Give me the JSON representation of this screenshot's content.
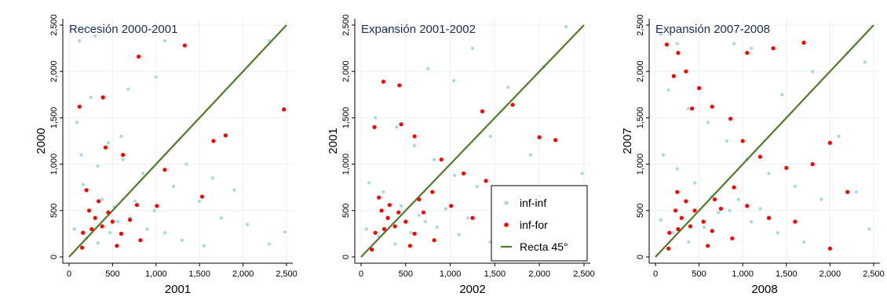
{
  "colors": {
    "inf_inf": "#add8e6",
    "inf_for": "#ff0000",
    "line45": "#4f7a28",
    "grid": "#eaf2f3",
    "axis": "#000000",
    "title": "#1a2e5a"
  },
  "legend": {
    "inf_inf": "inf-inf",
    "inf_for": "inf-for",
    "line45": "Recta 45°"
  },
  "chart_data": [
    {
      "type": "scatter",
      "title": "Recesión 2000-2001",
      "xlabel": "2001",
      "ylabel": "2000",
      "xlim": [
        0,
        2500
      ],
      "ylim": [
        0,
        2500
      ],
      "xticks": [
        "0",
        "500",
        "1,000",
        "1,500",
        "2,000",
        "2,500"
      ],
      "yticks": [
        "0",
        "500",
        "1,000",
        "1,500",
        "2,000",
        "2,500"
      ],
      "grid": true,
      "series": [
        {
          "name": "inf-inf",
          "points": [
            [
              120,
              2330
            ],
            [
              300,
              2380
            ],
            [
              1100,
              2330
            ],
            [
              680,
              1810
            ],
            [
              1000,
              1940
            ],
            [
              2300,
              2330
            ],
            [
              2470,
              1600
            ],
            [
              250,
              1720
            ],
            [
              90,
              1450
            ],
            [
              450,
              1230
            ],
            [
              620,
              1050
            ],
            [
              850,
              900
            ],
            [
              1200,
              760
            ],
            [
              1500,
              600
            ],
            [
              1750,
              420
            ],
            [
              2050,
              350
            ],
            [
              2300,
              140
            ],
            [
              2480,
              270
            ],
            [
              160,
              780
            ],
            [
              380,
              620
            ],
            [
              520,
              540
            ],
            [
              700,
              420
            ],
            [
              900,
              300
            ],
            [
              1100,
              260
            ],
            [
              1300,
              180
            ],
            [
              1550,
              120
            ],
            [
              60,
              300
            ],
            [
              200,
              200
            ],
            [
              330,
              150
            ],
            [
              470,
              260
            ],
            [
              560,
              380
            ],
            [
              760,
              600
            ],
            [
              980,
              500
            ],
            [
              140,
              1100
            ],
            [
              330,
              980
            ],
            [
              600,
              1300
            ],
            [
              1350,
              1000
            ],
            [
              1650,
              850
            ],
            [
              1900,
              720
            ]
          ]
        },
        {
          "name": "inf-for",
          "points": [
            [
              1330,
              2280
            ],
            [
              800,
              2160
            ],
            [
              390,
              1720
            ],
            [
              120,
              1620
            ],
            [
              1800,
              1310
            ],
            [
              2470,
              1590
            ],
            [
              1660,
              1250
            ],
            [
              420,
              1180
            ],
            [
              620,
              1100
            ],
            [
              1100,
              940
            ],
            [
              200,
              720
            ],
            [
              340,
              600
            ],
            [
              450,
              480
            ],
            [
              300,
              420
            ],
            [
              500,
              380
            ],
            [
              260,
              300
            ],
            [
              600,
              250
            ],
            [
              780,
              560
            ],
            [
              820,
              180
            ],
            [
              160,
              260
            ],
            [
              380,
              330
            ],
            [
              700,
              400
            ],
            [
              1010,
              550
            ],
            [
              1530,
              650
            ],
            [
              150,
              100
            ],
            [
              230,
              500
            ],
            [
              550,
              120
            ]
          ]
        }
      ]
    },
    {
      "type": "scatter",
      "title": "Expansión 2001-2002",
      "xlabel": "2002",
      "ylabel": "2001",
      "xlim": [
        0,
        2500
      ],
      "ylim": [
        0,
        2500
      ],
      "xticks": [
        "0",
        "500",
        "1,000",
        "1,500",
        "2,000",
        "2,500"
      ],
      "yticks": [
        "0",
        "500",
        "1,000",
        "1,500",
        "2,000",
        "2,500"
      ],
      "grid": true,
      "series": [
        {
          "name": "inf-inf",
          "points": [
            [
              300,
              2450
            ],
            [
              1250,
              2250
            ],
            [
              750,
              2030
            ],
            [
              1040,
              1900
            ],
            [
              1650,
              1830
            ],
            [
              2050,
              2050
            ],
            [
              2300,
              2480
            ],
            [
              1450,
              1300
            ],
            [
              1900,
              1100
            ],
            [
              2200,
              700
            ],
            [
              2400,
              350
            ],
            [
              2480,
              900
            ],
            [
              160,
              1500
            ],
            [
              400,
              1400
            ],
            [
              600,
              1200
            ],
            [
              820,
              1050
            ],
            [
              1050,
              880
            ],
            [
              1300,
              760
            ],
            [
              1600,
              620
            ],
            [
              90,
              800
            ],
            [
              250,
              700
            ],
            [
              450,
              550
            ],
            [
              650,
              450
            ],
            [
              850,
              320
            ],
            [
              1100,
              240
            ],
            [
              1450,
              160
            ],
            [
              60,
              300
            ],
            [
              200,
              220
            ],
            [
              380,
              140
            ],
            [
              560,
              260
            ],
            [
              720,
              380
            ],
            [
              950,
              520
            ],
            [
              1200,
              420
            ],
            [
              1800,
              280
            ],
            [
              2100,
              160
            ]
          ]
        },
        {
          "name": "inf-for",
          "points": [
            [
              250,
              1890
            ],
            [
              430,
              1850
            ],
            [
              1360,
              1570
            ],
            [
              1700,
              1640
            ],
            [
              2000,
              1290
            ],
            [
              2180,
              1260
            ],
            [
              450,
              1430
            ],
            [
              600,
              1300
            ],
            [
              150,
              1400
            ],
            [
              900,
              1050
            ],
            [
              1150,
              900
            ],
            [
              1400,
              820
            ],
            [
              200,
              640
            ],
            [
              320,
              560
            ],
            [
              420,
              480
            ],
            [
              300,
              420
            ],
            [
              500,
              380
            ],
            [
              260,
              300
            ],
            [
              600,
              250
            ],
            [
              700,
              480
            ],
            [
              820,
              180
            ],
            [
              160,
              260
            ],
            [
              380,
              330
            ],
            [
              650,
              620
            ],
            [
              1010,
              550
            ],
            [
              1250,
              420
            ],
            [
              120,
              80
            ],
            [
              230,
              500
            ],
            [
              550,
              120
            ],
            [
              800,
              700
            ]
          ]
        }
      ]
    },
    {
      "type": "scatter",
      "title": "Expansión 2007-2008",
      "xlabel": "2008",
      "ylabel": "2007",
      "xlim": [
        0,
        2500
      ],
      "ylim": [
        0,
        2500
      ],
      "xticks": [
        "0",
        "500",
        "1,000",
        "1,500",
        "2,000",
        "2,500"
      ],
      "yticks": [
        "0",
        "500",
        "1,000",
        "1,500",
        "2,000",
        "2,500"
      ],
      "grid": true,
      "series": [
        {
          "name": "inf-inf",
          "points": [
            [
              60,
              2400
            ],
            [
              250,
              2300
            ],
            [
              900,
              2300
            ],
            [
              1100,
              2250
            ],
            [
              2200,
              2200
            ],
            [
              2400,
              2100
            ],
            [
              1800,
              2000
            ],
            [
              1450,
              1750
            ],
            [
              2100,
              1300
            ],
            [
              2300,
              700
            ],
            [
              2450,
              300
            ],
            [
              150,
              1800
            ],
            [
              380,
              1600
            ],
            [
              600,
              1450
            ],
            [
              820,
              1250
            ],
            [
              1050,
              1050
            ],
            [
              1300,
              900
            ],
            [
              1600,
              760
            ],
            [
              1900,
              620
            ],
            [
              90,
              1100
            ],
            [
              250,
              950
            ],
            [
              450,
              800
            ],
            [
              650,
              650
            ],
            [
              850,
              500
            ],
            [
              1100,
              380
            ],
            [
              1400,
              260
            ],
            [
              1700,
              160
            ],
            [
              2000,
              90
            ],
            [
              60,
              400
            ],
            [
              200,
              260
            ],
            [
              380,
              160
            ],
            [
              560,
              320
            ],
            [
              720,
              480
            ],
            [
              950,
              620
            ],
            [
              1200,
              520
            ]
          ]
        },
        {
          "name": "inf-for",
          "points": [
            [
              130,
              2290
            ],
            [
              260,
              2200
            ],
            [
              350,
              2000
            ],
            [
              1050,
              2200
            ],
            [
              1350,
              2250
            ],
            [
              1700,
              2310
            ],
            [
              210,
              1950
            ],
            [
              500,
              1820
            ],
            [
              420,
              1600
            ],
            [
              650,
              1620
            ],
            [
              860,
              1490
            ],
            [
              1000,
              1250
            ],
            [
              1200,
              1080
            ],
            [
              1500,
              960
            ],
            [
              1800,
              1000
            ],
            [
              2000,
              1230
            ],
            [
              2200,
              700
            ],
            [
              250,
              700
            ],
            [
              350,
              600
            ],
            [
              450,
              500
            ],
            [
              300,
              420
            ],
            [
              550,
              380
            ],
            [
              260,
              300
            ],
            [
              650,
              280
            ],
            [
              750,
              520
            ],
            [
              880,
              200
            ],
            [
              160,
              260
            ],
            [
              400,
              330
            ],
            [
              680,
              620
            ],
            [
              1050,
              550
            ],
            [
              1300,
              420
            ],
            [
              150,
              90
            ],
            [
              230,
              500
            ],
            [
              600,
              120
            ],
            [
              900,
              750
            ],
            [
              1600,
              380
            ],
            [
              2000,
              90
            ]
          ]
        }
      ]
    }
  ]
}
